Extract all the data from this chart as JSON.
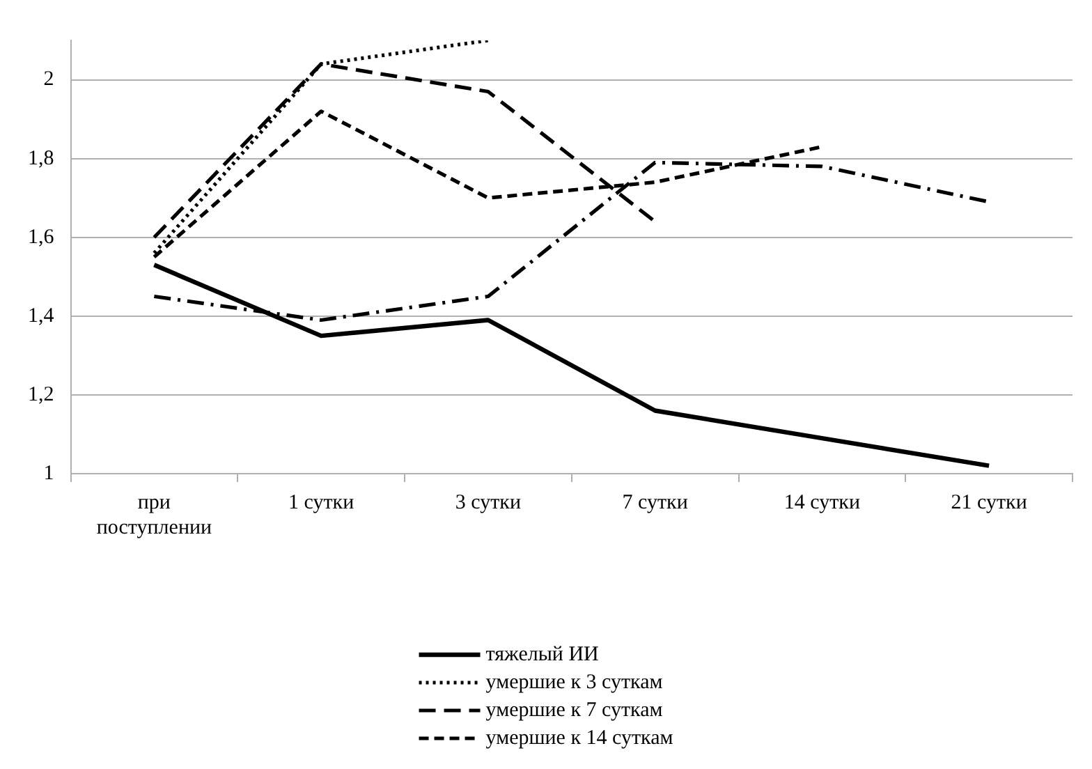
{
  "chart_data": {
    "type": "line",
    "categories": [
      "при поступлении",
      "1 сутки",
      "3 сутки",
      "7 сутки",
      "14 сутки",
      "21 сутки"
    ],
    "series": [
      {
        "name": "тяжелый ИИ",
        "color": "#000000",
        "line_style": "solid",
        "values": [
          1.53,
          1.35,
          1.39,
          1.16,
          1.09,
          1.02
        ]
      },
      {
        "name": "умершие к 3 суткам",
        "color": "#000000",
        "line_style": "dotted",
        "values": [
          1.56,
          2.04,
          2.1,
          null,
          null,
          null
        ]
      },
      {
        "name": "умершие к 7 суткам",
        "color": "#000000",
        "line_style": "dashed",
        "values": [
          1.6,
          2.04,
          1.97,
          1.64,
          null,
          null
        ]
      },
      {
        "name": "умершие к 14 суткам",
        "color": "#000000",
        "line_style": "dashed",
        "values": [
          1.55,
          1.92,
          1.7,
          1.74,
          1.83,
          null
        ]
      },
      {
        "color": "#000000",
        "line_style": "dashed",
        "values": [
          1.45,
          1.39,
          1.45,
          1.79,
          1.78,
          1.69
        ]
      }
    ],
    "ylim": [
      1,
      2.1
    ],
    "yticks": [
      1,
      {
        "value": 1.2,
        "label": "1,2"
      },
      {
        "value": 1.4,
        "label": "1,4"
      },
      {
        "value": 1.6,
        "label": "1,6"
      },
      {
        "value": 1.8,
        "label": "1,8"
      },
      2
    ],
    "grid": "y",
    "legend": "bottom",
    "marker": "none"
  }
}
